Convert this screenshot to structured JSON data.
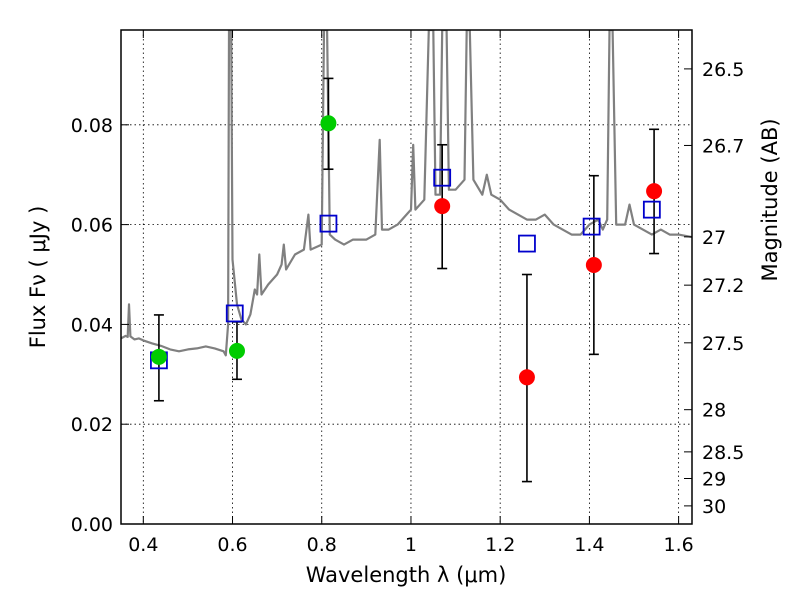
{
  "chart_data": {
    "type": "scatter",
    "xlabel": "Wavelength  λ (μm)",
    "ylabel": "Flux  Fν  ( μJy )",
    "y2label": "Magnitude (AB)",
    "xlim": [
      0.35,
      1.63
    ],
    "ylim": [
      0.0,
      0.099
    ],
    "grid": true,
    "x_ticks": [
      0.4,
      0.6,
      0.8,
      1.0,
      1.2,
      1.4,
      1.6
    ],
    "x_tick_labels": [
      "0.4",
      "0.6",
      "0.8",
      "1",
      "1.2",
      "1.4",
      "1.6"
    ],
    "y_ticks": [
      0.0,
      0.02,
      0.04,
      0.06,
      0.08
    ],
    "y_tick_labels": [
      "0.00",
      "0.02",
      "0.04",
      "0.06",
      "0.08"
    ],
    "y2_ticks": [
      26.5,
      26.7,
      27.0,
      27.2,
      27.5,
      28.0,
      28.5,
      29.0,
      30.0
    ],
    "y2_tick_labels": [
      "26.5",
      "26.7",
      "27",
      "27.2",
      "27.5",
      "28",
      "28.5",
      "29",
      "30"
    ],
    "series": [
      {
        "kind": "line",
        "color": "#808080",
        "points": [
          [
            0.35,
            0.0372
          ],
          [
            0.36,
            0.0377
          ],
          [
            0.365,
            0.0375
          ],
          [
            0.368,
            0.044
          ],
          [
            0.371,
            0.0376
          ],
          [
            0.38,
            0.037
          ],
          [
            0.39,
            0.0372
          ],
          [
            0.4,
            0.0368
          ],
          [
            0.42,
            0.0362
          ],
          [
            0.44,
            0.0357
          ],
          [
            0.46,
            0.035
          ],
          [
            0.48,
            0.0346
          ],
          [
            0.5,
            0.035
          ],
          [
            0.52,
            0.0352
          ],
          [
            0.54,
            0.0356
          ],
          [
            0.56,
            0.0352
          ],
          [
            0.58,
            0.0346
          ],
          [
            0.585,
            0.0338
          ],
          [
            0.59,
            0.04
          ],
          [
            0.592,
            0.099
          ],
          [
            0.597,
            0.099
          ],
          [
            0.6,
            0.053
          ],
          [
            0.61,
            0.044
          ],
          [
            0.62,
            0.041
          ],
          [
            0.63,
            0.04
          ],
          [
            0.64,
            0.042
          ],
          [
            0.65,
            0.047
          ],
          [
            0.655,
            0.046
          ],
          [
            0.66,
            0.054
          ],
          [
            0.665,
            0.046
          ],
          [
            0.68,
            0.048
          ],
          [
            0.7,
            0.05
          ],
          [
            0.71,
            0.052
          ],
          [
            0.715,
            0.056
          ],
          [
            0.72,
            0.051
          ],
          [
            0.74,
            0.054
          ],
          [
            0.76,
            0.055
          ],
          [
            0.77,
            0.062
          ],
          [
            0.775,
            0.055
          ],
          [
            0.8,
            0.056
          ],
          [
            0.805,
            0.099
          ],
          [
            0.812,
            0.099
          ],
          [
            0.818,
            0.058
          ],
          [
            0.83,
            0.057
          ],
          [
            0.85,
            0.056
          ],
          [
            0.87,
            0.057
          ],
          [
            0.9,
            0.057
          ],
          [
            0.92,
            0.058
          ],
          [
            0.93,
            0.077
          ],
          [
            0.935,
            0.059
          ],
          [
            0.95,
            0.059
          ],
          [
            0.97,
            0.06
          ],
          [
            0.99,
            0.062
          ],
          [
            1.0,
            0.063
          ],
          [
            1.005,
            0.076
          ],
          [
            1.01,
            0.063
          ],
          [
            1.03,
            0.065
          ],
          [
            1.04,
            0.099
          ],
          [
            1.05,
            0.099
          ],
          [
            1.055,
            0.066
          ],
          [
            1.065,
            0.066
          ],
          [
            1.07,
            0.099
          ],
          [
            1.08,
            0.099
          ],
          [
            1.085,
            0.067
          ],
          [
            1.1,
            0.067
          ],
          [
            1.12,
            0.069
          ],
          [
            1.125,
            0.099
          ],
          [
            1.132,
            0.099
          ],
          [
            1.14,
            0.069
          ],
          [
            1.16,
            0.066
          ],
          [
            1.17,
            0.07
          ],
          [
            1.18,
            0.066
          ],
          [
            1.2,
            0.065
          ],
          [
            1.22,
            0.063
          ],
          [
            1.24,
            0.062
          ],
          [
            1.26,
            0.061
          ],
          [
            1.28,
            0.061
          ],
          [
            1.3,
            0.062
          ],
          [
            1.32,
            0.06
          ],
          [
            1.34,
            0.059
          ],
          [
            1.36,
            0.058
          ],
          [
            1.38,
            0.058
          ],
          [
            1.4,
            0.06
          ],
          [
            1.42,
            0.061
          ],
          [
            1.43,
            0.059
          ],
          [
            1.44,
            0.061
          ],
          [
            1.445,
            0.099
          ],
          [
            1.452,
            0.099
          ],
          [
            1.46,
            0.06
          ],
          [
            1.48,
            0.06
          ],
          [
            1.49,
            0.064
          ],
          [
            1.5,
            0.06
          ],
          [
            1.52,
            0.059
          ],
          [
            1.54,
            0.058
          ],
          [
            1.56,
            0.059
          ],
          [
            1.58,
            0.058
          ],
          [
            1.6,
            0.058
          ],
          [
            1.63,
            0.0575
          ]
        ]
      },
      {
        "kind": "open-square",
        "color": "#0000cc",
        "points": [
          [
            0.435,
            0.0328
          ],
          [
            0.605,
            0.0422
          ],
          [
            0.815,
            0.0602
          ],
          [
            1.07,
            0.0694
          ],
          [
            1.26,
            0.0562
          ],
          [
            1.405,
            0.0596
          ],
          [
            1.54,
            0.063
          ]
        ]
      },
      {
        "kind": "filled-circle",
        "color": "#00cc00",
        "points": [
          [
            0.435,
            0.0335
          ],
          [
            0.61,
            0.0347
          ],
          [
            0.815,
            0.0803
          ]
        ]
      },
      {
        "kind": "filled-circle",
        "color": "#ff0000",
        "points": [
          [
            1.07,
            0.0637
          ],
          [
            1.26,
            0.0294
          ],
          [
            1.41,
            0.0519
          ],
          [
            1.545,
            0.0667
          ]
        ]
      }
    ],
    "error_bars": [
      {
        "x": 0.435,
        "y": 0.0335,
        "lo": 0.0247,
        "hi": 0.0419
      },
      {
        "x": 0.61,
        "y": 0.0347,
        "lo": 0.029,
        "hi": 0.0405
      },
      {
        "x": 0.815,
        "y": 0.0803,
        "lo": 0.0711,
        "hi": 0.0893
      },
      {
        "x": 1.07,
        "y": 0.0637,
        "lo": 0.0512,
        "hi": 0.076
      },
      {
        "x": 1.26,
        "y": 0.0294,
        "lo": 0.0085,
        "hi": 0.05
      },
      {
        "x": 1.41,
        "y": 0.0519,
        "lo": 0.034,
        "hi": 0.0698
      },
      {
        "x": 1.545,
        "y": 0.0667,
        "lo": 0.0542,
        "hi": 0.0791
      }
    ]
  }
}
